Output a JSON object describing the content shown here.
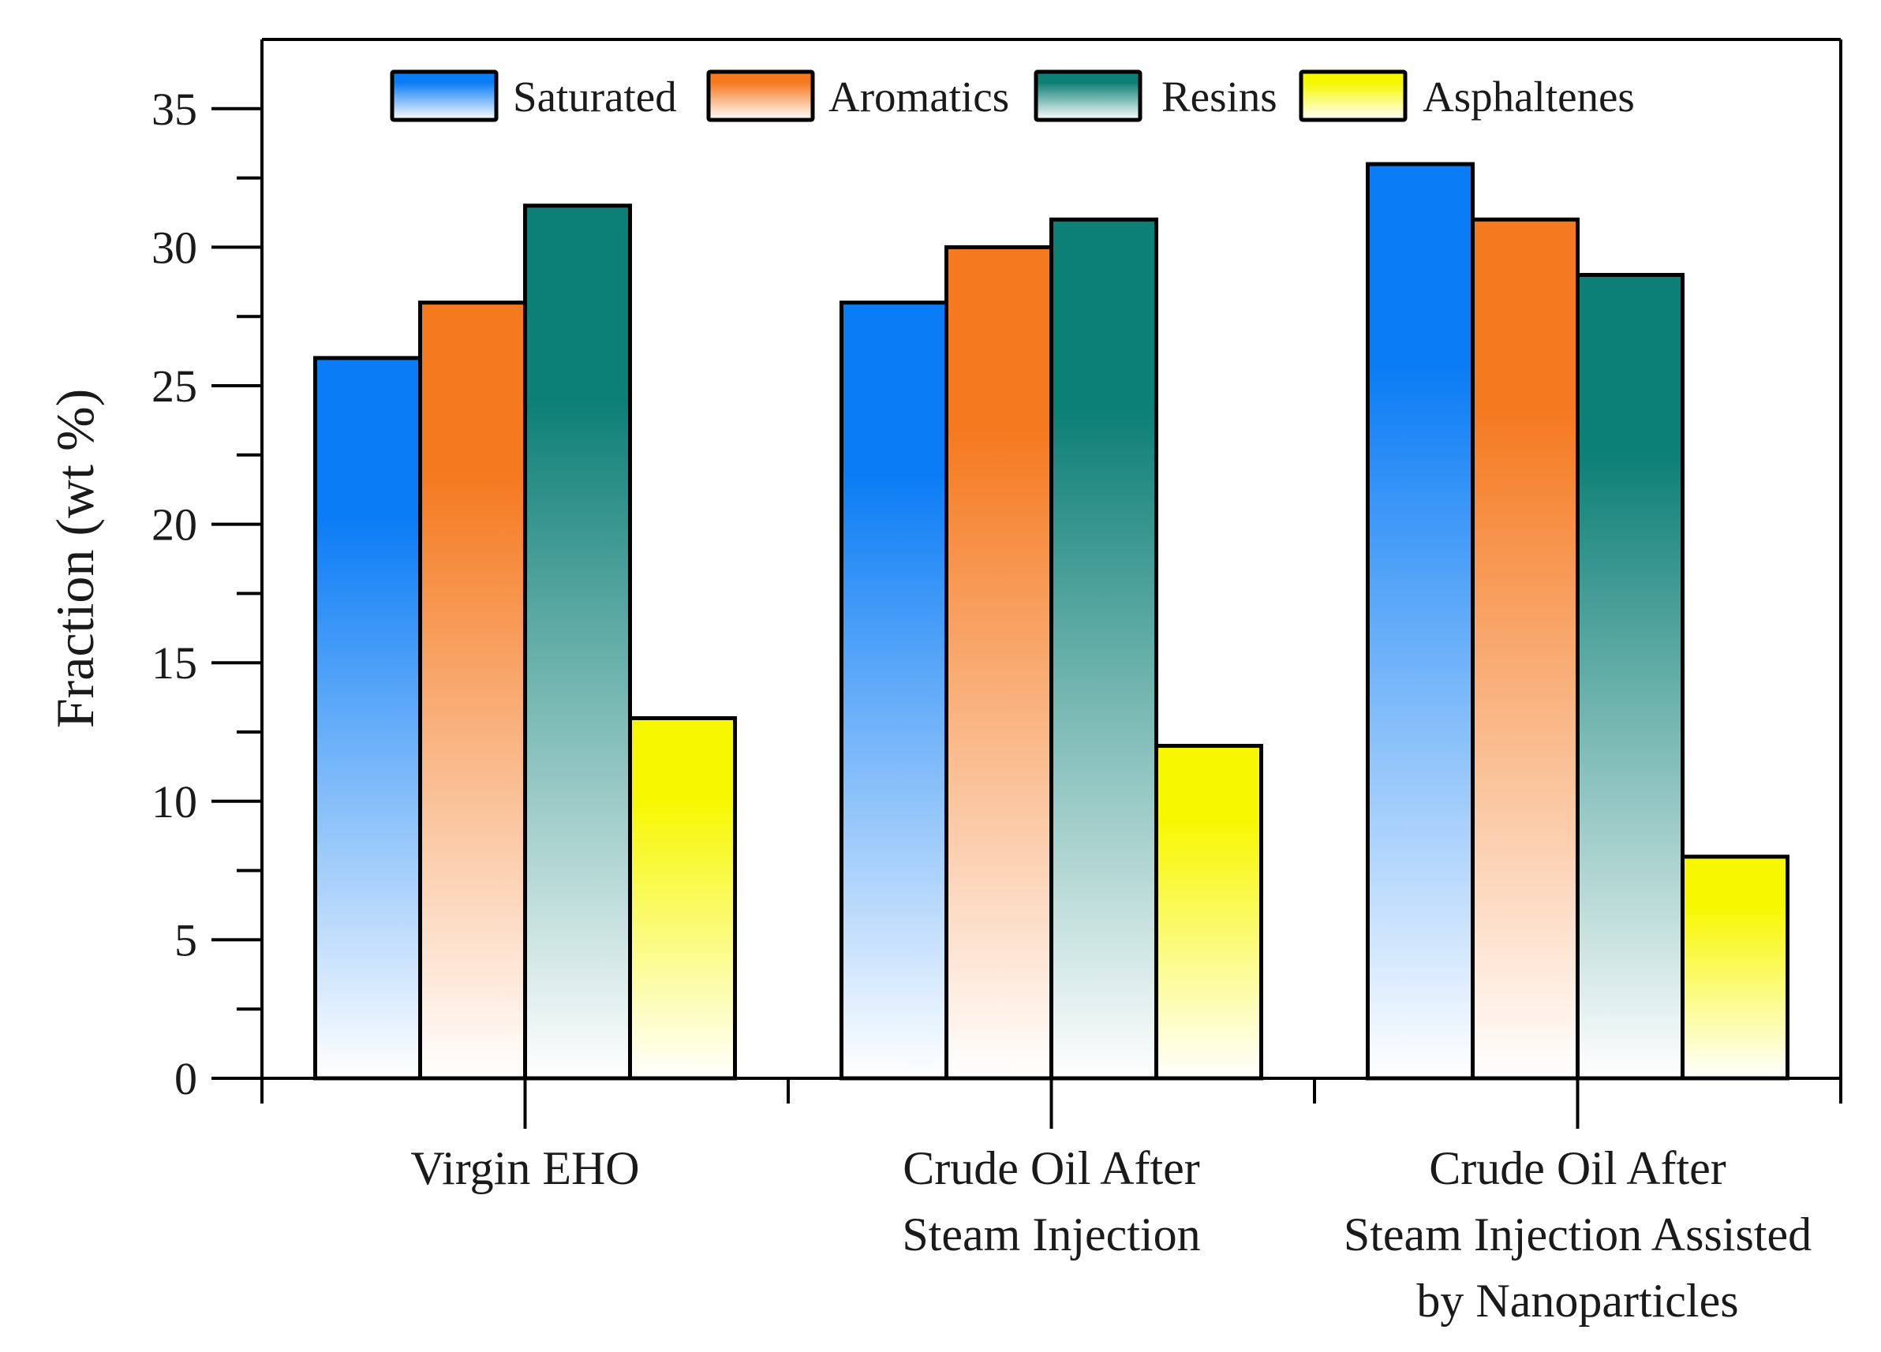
{
  "chart_data": {
    "type": "bar",
    "title": "",
    "xlabel": "",
    "ylabel": "Fraction (wt %)",
    "ylim": [
      0,
      37.5
    ],
    "yticks": [
      "0",
      "5",
      "10",
      "15",
      "20",
      "25",
      "30",
      "35"
    ],
    "categories": [
      [
        "Virgin EHO"
      ],
      [
        "Crude Oil After",
        "Steam Injection"
      ],
      [
        "Crude Oil After",
        "Steam Injection Assisted",
        "by Nanoparticles"
      ]
    ],
    "series": [
      {
        "name": "Saturated",
        "values": [
          26,
          28,
          33
        ],
        "color": "#0a7cf5"
      },
      {
        "name": "Aromatics",
        "values": [
          28,
          30,
          31
        ],
        "color": "#f5791f"
      },
      {
        "name": "Resins",
        "values": [
          31.5,
          31,
          29
        ],
        "color": "#0c7f76"
      },
      {
        "name": "Asphaltenes",
        "values": [
          13,
          12,
          8
        ],
        "color": "#f7f700"
      }
    ],
    "legend_position": "top",
    "grid": false
  }
}
